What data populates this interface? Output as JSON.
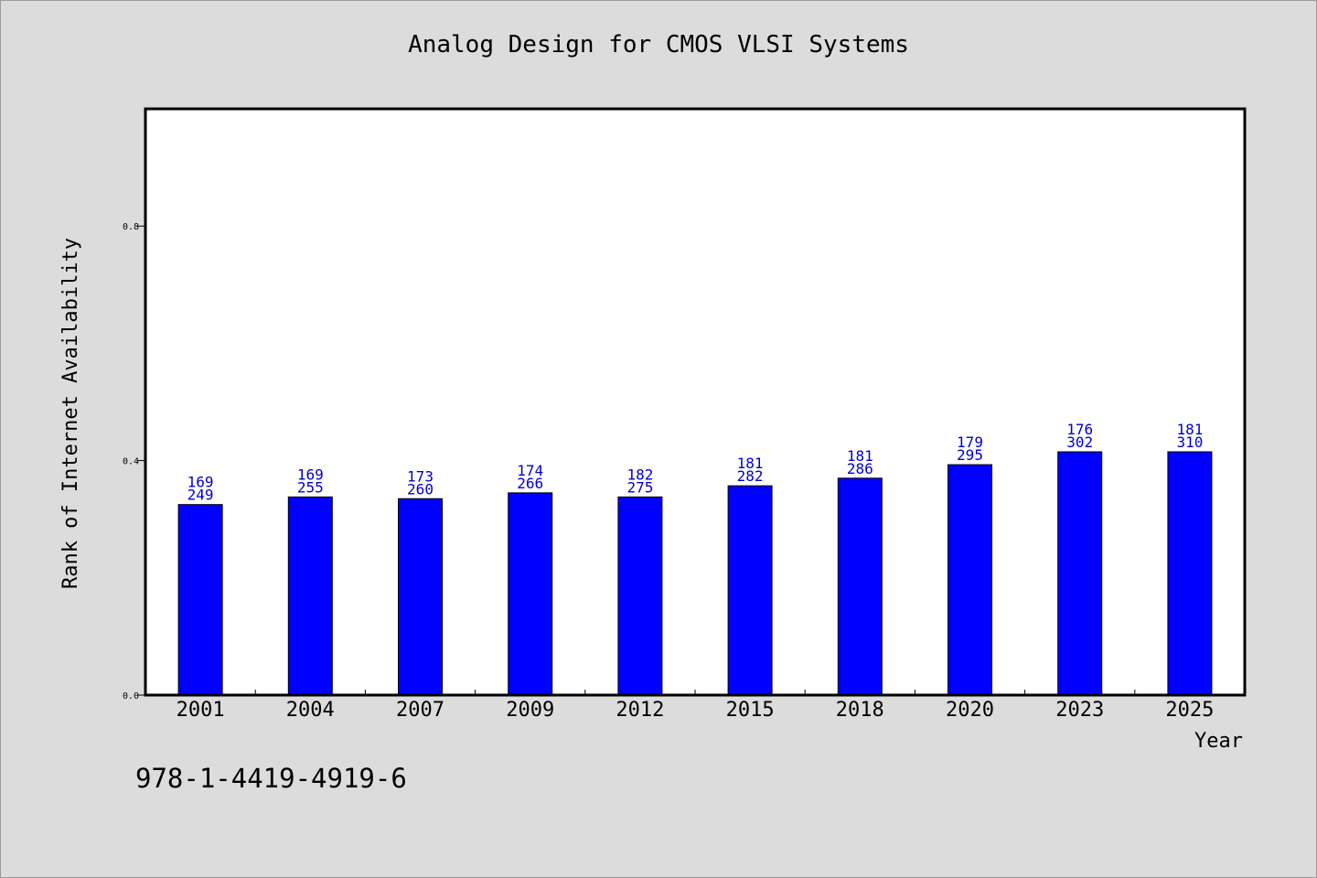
{
  "chart_data": {
    "type": "bar",
    "title": "Analog Design for CMOS VLSI Systems",
    "xlabel": "Year",
    "ylabel": "Rank of Internet Availability",
    "categories": [
      "2001",
      "2004",
      "2007",
      "2009",
      "2012",
      "2015",
      "2018",
      "2020",
      "2023",
      "2025"
    ],
    "values": [
      0.325,
      0.338,
      0.335,
      0.345,
      0.338,
      0.357,
      0.37,
      0.393,
      0.415,
      0.415
    ],
    "labels_top": [
      "169",
      "169",
      "173",
      "174",
      "182",
      "181",
      "181",
      "179",
      "176",
      "181"
    ],
    "labels_bottom": [
      "249",
      "255",
      "260",
      "266",
      "275",
      "282",
      "286",
      "295",
      "302",
      "310"
    ],
    "ylim": [
      0,
      1.0
    ],
    "yticks": [
      "0.0",
      "0.4",
      "0.8"
    ],
    "ytick_values": [
      0.0,
      0.4,
      0.8
    ],
    "grid": false,
    "bar_color": "#0000ff",
    "label_color": "#0000cc"
  },
  "footer": {
    "isbn": "978-1-4419-4919-6"
  }
}
